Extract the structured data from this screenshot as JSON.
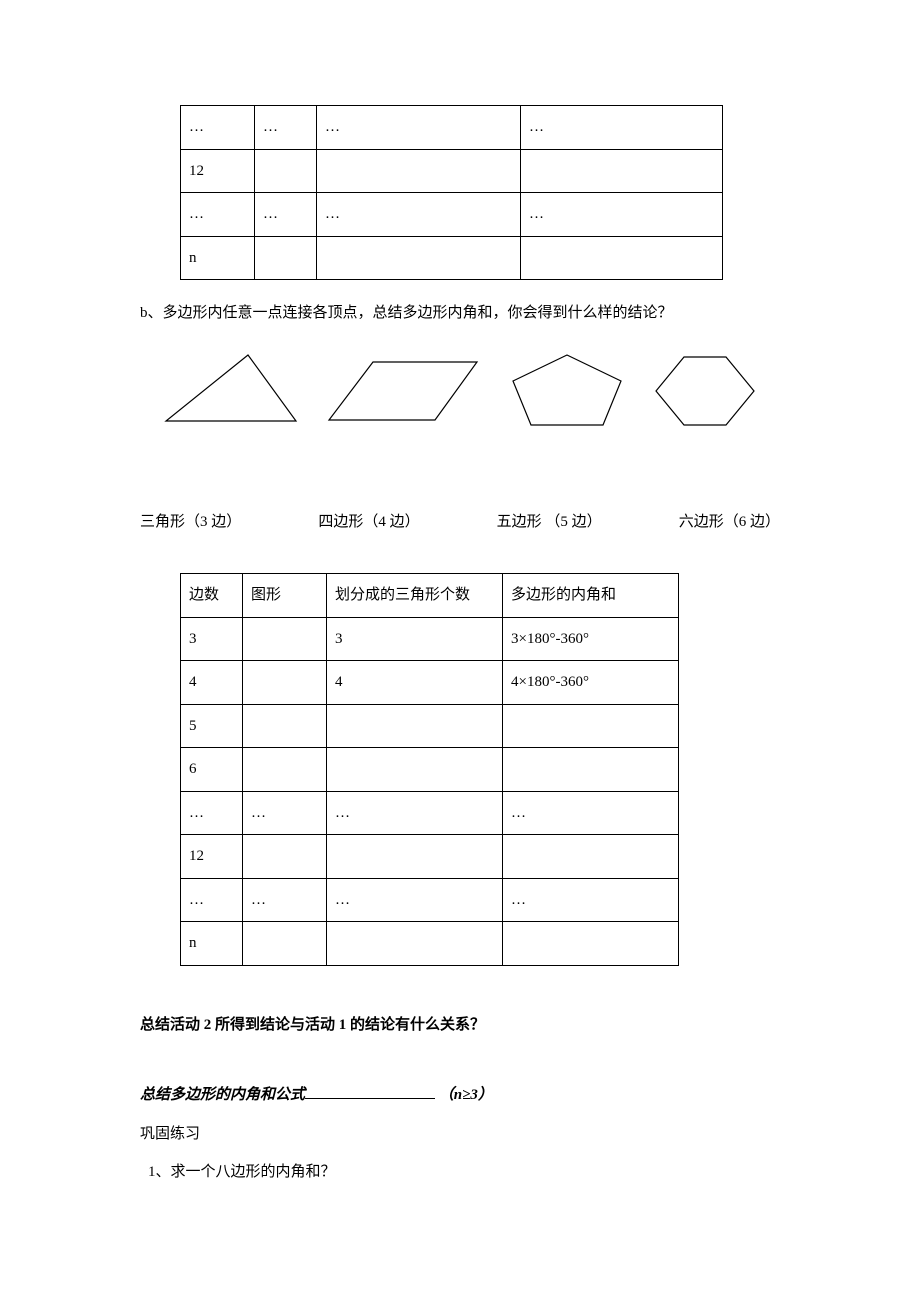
{
  "t1": {
    "col_widths_class": [
      "t1-c1",
      "t1-c2",
      "t1-c3",
      "t1-c4"
    ],
    "rows": [
      [
        "…",
        "…",
        "…",
        "…"
      ],
      [
        "12",
        "",
        "",
        ""
      ],
      [
        "…",
        "…",
        "…",
        "…"
      ],
      [
        "n",
        "",
        "",
        ""
      ]
    ]
  },
  "para_b": "b、多边形内任意一点连接各顶点，总结多边形内角和，你会得到什么样的结论？",
  "shapes": {
    "triangle_label": "三角形（3 边）",
    "quad_label": "四边形（4 边）",
    "pentagon_label": "五边形 （5 边）",
    "hexagon_label": "六边形（6 边）",
    "stroke": "#000000",
    "stroke_width": 1.2
  },
  "t2": {
    "headers": [
      "边数",
      "图形",
      "划分成的三角形个数",
      "多边形的内角和"
    ],
    "rows": [
      [
        "3",
        "",
        "3",
        "3×180°-360°"
      ],
      [
        "4",
        "",
        "4",
        "4×180°-360°"
      ],
      [
        "5",
        "",
        "",
        ""
      ],
      [
        "6",
        "",
        "",
        ""
      ],
      [
        "…",
        "…",
        "…",
        "…"
      ],
      [
        "12",
        "",
        "",
        ""
      ],
      [
        "…",
        "…",
        "…",
        "…"
      ],
      [
        "n",
        "",
        "",
        ""
      ]
    ]
  },
  "q_summary": "总结活动 2 所得到结论与活动 1 的结论有什么关系？",
  "formula_prefix": "总结多边形的内角和公式",
  "formula_suffix_open": "（",
  "formula_n": "n",
  "formula_suffix_close": "≥3）",
  "practice_heading": "巩固练习",
  "practice_q1": "1、求一个八边形的内角和？"
}
